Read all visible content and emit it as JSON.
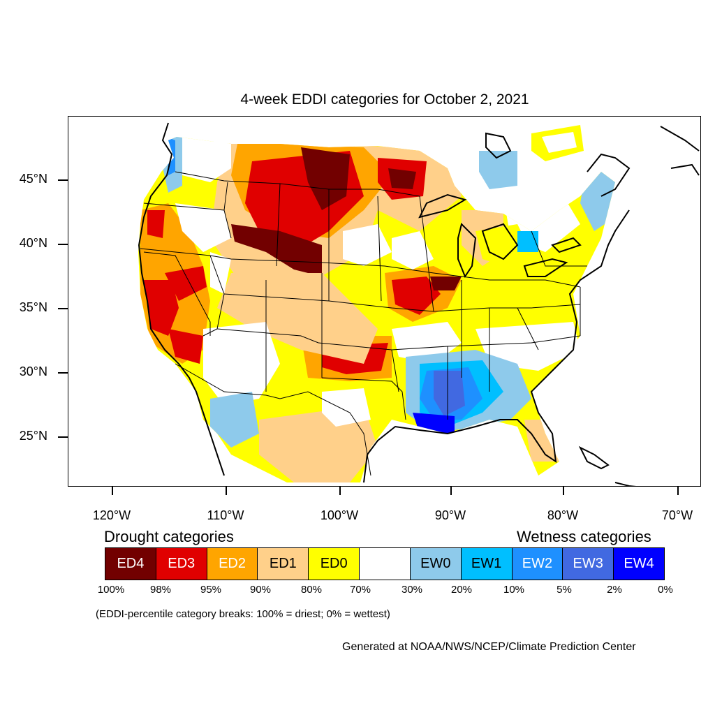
{
  "title": "4-week EDDI categories for October 2, 2021",
  "map": {
    "projection": "Lambert conformal, CONUS",
    "latitude_labels": [
      "45°N",
      "40°N",
      "35°N",
      "30°N",
      "25°N"
    ],
    "longitude_labels": [
      "120°W",
      "110°W",
      "100°W",
      "90°W",
      "80°W",
      "70°W"
    ],
    "category_colors": {
      "ED4": "#720000",
      "ED3": "#E00000",
      "ED2": "#FFA500",
      "ED1": "#FFD08A",
      "ED0": "#FFFF00",
      "none": "#FFFFFF",
      "EW0": "#8ECAEB",
      "EW1": "#00BFFF",
      "EW2": "#1E90FF",
      "EW3": "#4169E1",
      "EW4": "#0000FF"
    }
  },
  "legend": {
    "drought_heading": "Drought categories",
    "wetness_heading": "Wetness categories",
    "categories": [
      {
        "label": "ED4",
        "color": "#720000",
        "text_color": "#ffffff"
      },
      {
        "label": "ED3",
        "color": "#E00000",
        "text_color": "#ffffff"
      },
      {
        "label": "ED2",
        "color": "#FFA500",
        "text_color": "#ffffff"
      },
      {
        "label": "ED1",
        "color": "#FFD08A",
        "text_color": "#000000"
      },
      {
        "label": "ED0",
        "color": "#FFFF00",
        "text_color": "#000000"
      },
      {
        "label": "",
        "color": "#FFFFFF",
        "text_color": "#000000"
      },
      {
        "label": "EW0",
        "color": "#8ECAEB",
        "text_color": "#000000"
      },
      {
        "label": "EW1",
        "color": "#00BFFF",
        "text_color": "#000000"
      },
      {
        "label": "EW2",
        "color": "#1E90FF",
        "text_color": "#ffffff"
      },
      {
        "label": "EW3",
        "color": "#4169E1",
        "text_color": "#ffffff"
      },
      {
        "label": "EW4",
        "color": "#0000FF",
        "text_color": "#ffffff"
      }
    ],
    "breaks": [
      "100%",
      "98%",
      "95%",
      "90%",
      "80%",
      "70%",
      "30%",
      "20%",
      "10%",
      "5%",
      "2%",
      "0%"
    ],
    "note": "(EDDI-percentile category breaks: 100% = driest; 0% = wettest)"
  },
  "credit": "Generated at NOAA/NWS/NCEP/Climate Prediction Center"
}
